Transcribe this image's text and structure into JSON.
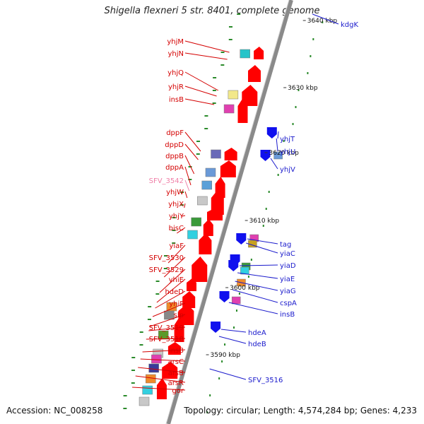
{
  "title": "Shigella flexneri 5 str. 8401, complete genome",
  "footer": {
    "accession": "Accession: NC_008258",
    "summary": "Topology: circular; Length: 4,574,284 bp; Genes: 4,233"
  },
  "colors": {
    "backbone": "#8a8a8a",
    "forward_label": "#d40000",
    "reverse_label": "#1a1acc",
    "pseudo_label": "#f080a8",
    "orf_tick": "#2a8a2a",
    "cds_forward": "#ff0000",
    "cds_reverse": "#1010ee"
  },
  "scale_marks": [
    "3640 kbp",
    "3630 kbp",
    "3620 kbp",
    "3610 kbp",
    "3600 kbp",
    "3590 kbp"
  ],
  "genes_forward": [
    "yhjM",
    "yhjN",
    "yhjQ",
    "yhjR",
    "insB",
    "dppF",
    "dppD",
    "dppB",
    "dppA",
    "SFV_3542",
    "yhjW",
    "yhjX",
    "yhjY",
    "bisC",
    "yiaF",
    "SFV_3530",
    "SFV_3529",
    "yhiE",
    "hdeD",
    "yhiF",
    "slp",
    "SFV_3519",
    "SFV_3518",
    "insB",
    "arsC",
    "arsB",
    "arsR",
    "gor"
  ],
  "genes_reverse": [
    "kdgK",
    "yhjT",
    "yhjU",
    "yhjV",
    "tag",
    "yiaC",
    "yiaD",
    "yiaE",
    "yiaG",
    "cspA",
    "insB",
    "hdeA",
    "hdeB",
    "SFV_3516"
  ]
}
